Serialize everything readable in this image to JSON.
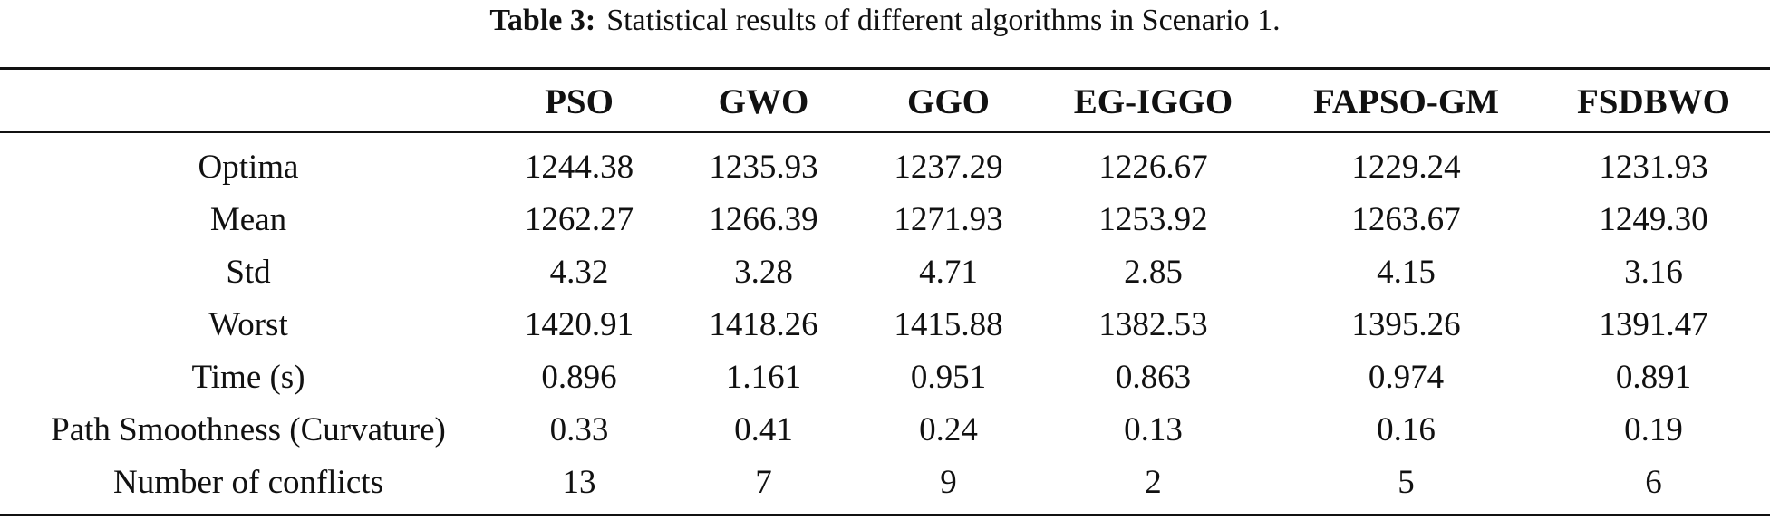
{
  "caption": {
    "label": "Table 3:",
    "text": "Statistical results of different algorithms in Scenario 1."
  },
  "table": {
    "corner": "",
    "columns": [
      "PSO",
      "GWO",
      "GGO",
      "EG-IGGO",
      "FAPSO-GM",
      "FSDBWO"
    ],
    "rows": [
      {
        "metric": "Optima",
        "values": [
          "1244.38",
          "1235.93",
          "1237.29",
          "1226.67",
          "1229.24",
          "1231.93"
        ]
      },
      {
        "metric": "Mean",
        "values": [
          "1262.27",
          "1266.39",
          "1271.93",
          "1253.92",
          "1263.67",
          "1249.30"
        ]
      },
      {
        "metric": "Std",
        "values": [
          "4.32",
          "3.28",
          "4.71",
          "2.85",
          "4.15",
          "3.16"
        ]
      },
      {
        "metric": "Worst",
        "values": [
          "1420.91",
          "1418.26",
          "1415.88",
          "1382.53",
          "1395.26",
          "1391.47"
        ]
      },
      {
        "metric": "Time (s)",
        "values": [
          "0.896",
          "1.161",
          "0.951",
          "0.863",
          "0.974",
          "0.891"
        ]
      },
      {
        "metric": "Path Smoothness (Curvature)",
        "values": [
          "0.33",
          "0.41",
          "0.24",
          "0.13",
          "0.16",
          "0.19"
        ]
      },
      {
        "metric": "Number of conflicts",
        "values": [
          "13",
          "7",
          "9",
          "2",
          "5",
          "6"
        ]
      }
    ]
  }
}
